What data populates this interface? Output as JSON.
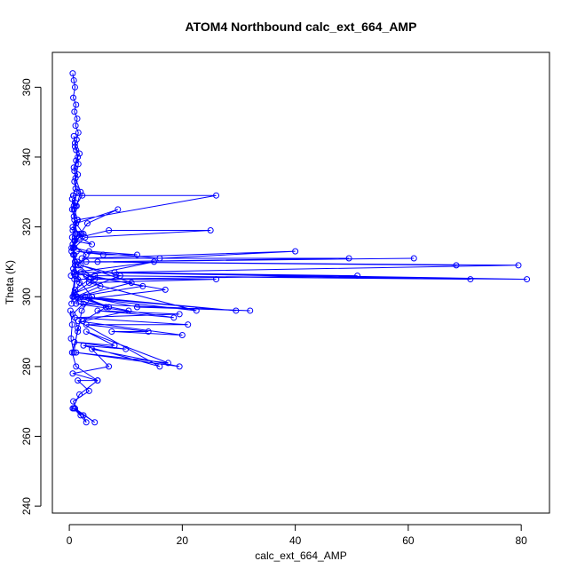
{
  "chart_data": {
    "type": "scatter",
    "title": "ATOM4 Northbound calc_ext_664_AMP",
    "xlabel": "calc_ext_664_AMP",
    "ylabel": "Theta (K)",
    "xlim": [
      -3,
      85
    ],
    "ylim": [
      238,
      370
    ],
    "xticks": [
      0,
      20,
      40,
      60,
      80
    ],
    "yticks": [
      240,
      260,
      280,
      300,
      320,
      340,
      360
    ],
    "grid": false,
    "legend": "none",
    "draw_lines": true,
    "series": [
      {
        "color": "#0000ff",
        "x": [
          0.4,
          0.9,
          0.7,
          1.1,
          0.8,
          1.3,
          0.9,
          1.5,
          1.0,
          0.8,
          1.2,
          1.6,
          1.1,
          2.0,
          1.3,
          0.9,
          1.4,
          0.7,
          1.0,
          1.8,
          0.6,
          1.2,
          0.9,
          0.5,
          1.4,
          0.8,
          0.5,
          1.1,
          2.3,
          0.7,
          26.0,
          1.5,
          0.6,
          1.9,
          3.2,
          8.6,
          1.2,
          2.5,
          1.0,
          4.0,
          1.8,
          7.0,
          25.0,
          2.8,
          0.9,
          3.5,
          12.0,
          6.0,
          1.3,
          16.0,
          40.0,
          2.2,
          49.5,
          5.0,
          61.0,
          3.0,
          68.5,
          1.0,
          79.5,
          8.0,
          81.0,
          4.5,
          71.0,
          2.0,
          51.0,
          1.5,
          26.0,
          3.5,
          22.5,
          0.8,
          29.5,
          2.8,
          12.0,
          32.0,
          1.2,
          18.5,
          5.0,
          19.5,
          1.0,
          21.0,
          3.0,
          14.0,
          7.5,
          20.0,
          1.6,
          16.0,
          2.5,
          10.0,
          0.9,
          8.0,
          3.0,
          17.5,
          1.2,
          19.5,
          4.0,
          7.0,
          0.6,
          5.0,
          1.5,
          3.5,
          0.7,
          2.0,
          1.0,
          4.5,
          0.8,
          3.0,
          2.5,
          0.6,
          1.8,
          5.0,
          1.2,
          0.5,
          1.5,
          2.2,
          4.0,
          1.0
        ],
        "y": [
          298,
          305,
          312,
          318,
          325,
          330,
          336,
          340,
          344,
          346,
          342,
          338,
          334,
          330,
          326,
          322,
          318,
          314,
          309,
          304,
          300,
          306,
          312,
          317,
          322,
          326,
          328,
          326,
          329,
          329,
          329,
          322,
          320,
          318,
          321,
          325,
          321,
          318,
          316,
          315,
          317,
          319,
          319,
          317,
          314,
          313,
          312,
          312,
          313,
          311,
          313,
          311,
          311,
          310,
          311,
          310,
          309,
          310,
          309,
          307,
          305,
          306,
          305,
          307,
          306,
          305,
          305,
          304,
          296,
          300,
          296,
          300,
          297,
          296,
          298,
          294,
          296,
          295,
          294,
          292,
          292,
          290,
          290,
          289,
          293,
          280,
          286,
          285,
          287,
          286,
          290,
          281,
          284,
          280,
          285,
          280,
          278,
          276,
          276,
          273,
          270,
          266,
          268,
          264,
          268,
          264,
          266,
          268,
          272,
          276,
          280,
          284,
          290,
          296,
          300,
          306
        ]
      },
      {
        "color": "#0000ff",
        "x": [
          0.6,
          0.8,
          1.0,
          0.7,
          1.2,
          0.9,
          1.4,
          1.1,
          1.6,
          1.3,
          1.0,
          1.8,
          1.2,
          0.8,
          1.5,
          0.9,
          1.1,
          0.7,
          1.0,
          0.5,
          0.8,
          1.2,
          0.6,
          0.9,
          0.4
        ],
        "y": [
          364,
          362,
          360,
          357,
          355,
          353,
          351,
          349,
          347,
          345,
          343,
          341,
          339,
          337,
          335,
          333,
          331,
          329,
          327,
          325,
          323,
          321,
          319,
          316,
          313
        ]
      },
      {
        "color": "#0000ff",
        "x": [
          0.2,
          0.5,
          0.3,
          0.8,
          1.5,
          0.6,
          2.5,
          1.0,
          3.5,
          0.7,
          5.5,
          1.2,
          7.0,
          0.9,
          9.0,
          2.0,
          11.0,
          1.4,
          13.0,
          0.8,
          15.0,
          3.0,
          17.0,
          1.1,
          10.5,
          2.4,
          6.5,
          0.9,
          4.5,
          1.6,
          3.0,
          0.6,
          2.2,
          0.4,
          1.4,
          0.3
        ],
        "y": [
          296,
          292,
          288,
          284,
          291,
          295,
          298,
          302,
          305,
          308,
          303,
          300,
          297,
          301,
          306,
          309,
          304,
          300,
          303,
          307,
          310,
          306,
          302,
          299,
          296,
          293,
          297,
          301,
          305,
          309,
          312,
          315,
          318,
          314,
          310,
          306
        ]
      }
    ]
  }
}
